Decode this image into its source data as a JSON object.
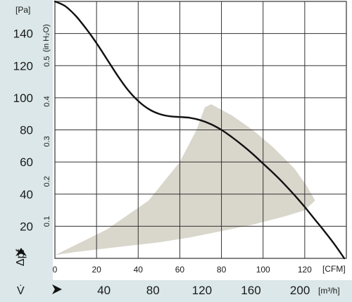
{
  "chart_data": {
    "type": "line",
    "title": "",
    "y_axis": {
      "label": "Δpf",
      "unit": "[Pa]",
      "range": [
        0,
        160
      ],
      "ticks": [
        20,
        40,
        60,
        80,
        100,
        120,
        140
      ],
      "tick_labels": [
        "20",
        "40",
        "60",
        "80",
        "100",
        "120",
        "140"
      ]
    },
    "y2_axis": {
      "unit": "(in H₂O)",
      "ticks": [
        0.1,
        0.2,
        0.3,
        0.4,
        0.5
      ],
      "tick_labels": [
        "0.1",
        "0.2",
        "0.3",
        "0.4",
        "0.5"
      ]
    },
    "x_axis": {
      "unit": "[CFM]",
      "range": [
        0,
        140
      ],
      "ticks": [
        0,
        20,
        40,
        60,
        80,
        100,
        120
      ],
      "tick_labels": [
        "0",
        "20",
        "40",
        "60",
        "80",
        "100",
        "120"
      ]
    },
    "x2_axis": {
      "label": "V̇",
      "unit": "[m³/h]",
      "ticks": [
        40,
        80,
        120,
        160,
        200
      ],
      "tick_labels": [
        "40",
        "80",
        "120",
        "160",
        "200"
      ]
    },
    "grid": true,
    "series": [
      {
        "color": "#111111",
        "x": [
          0,
          5,
          10,
          15,
          20,
          25,
          30,
          35,
          40,
          45,
          50,
          55,
          60,
          65,
          70,
          75,
          80,
          85,
          90,
          95,
          100,
          105,
          110,
          115,
          120,
          125,
          130,
          135,
          139
        ],
        "y": [
          160,
          157,
          151,
          143,
          134,
          124,
          114,
          105,
          98,
          93,
          90,
          88.5,
          88,
          87.5,
          86,
          83.5,
          80,
          75.5,
          70.5,
          65,
          59,
          53,
          46.5,
          39.5,
          32,
          24,
          16,
          7.5,
          0
        ]
      }
    ],
    "shaded_region": {
      "color": "#d9d6cc",
      "x": [
        0,
        25,
        45,
        60,
        68,
        72,
        75,
        85,
        95,
        105,
        115,
        121,
        125,
        120,
        110,
        95,
        80,
        65,
        50,
        30,
        10,
        0
      ],
      "y": [
        2,
        18,
        36,
        60,
        80,
        94,
        96,
        89,
        80,
        69,
        56,
        45,
        36,
        30,
        26,
        21,
        17,
        13,
        10,
        7,
        4,
        2
      ]
    }
  }
}
